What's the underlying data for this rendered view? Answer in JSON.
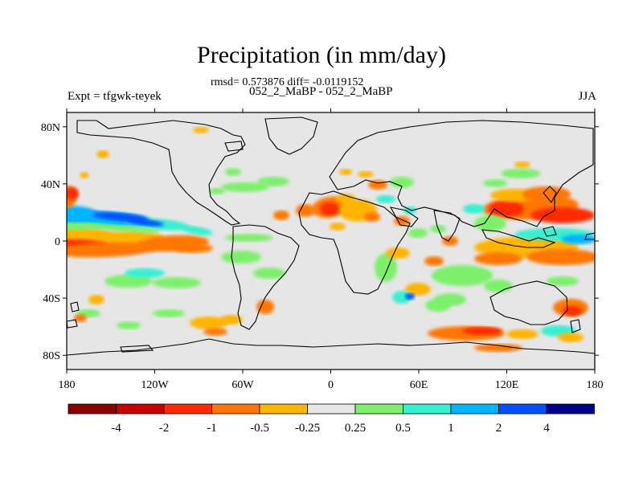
{
  "title": "Precipitation (in mm/day)",
  "stats": "rmsd= 0.573876 diff= -0.0119152",
  "comparison": "052_2_MaBP - 052_2_MaBP",
  "experiment": "Expt = tfgwk-teyek",
  "season": "JJA",
  "lat_ticks": [
    {
      "label": "80N",
      "lat": 80
    },
    {
      "label": "40N",
      "lat": 40
    },
    {
      "label": "0",
      "lat": 0
    },
    {
      "label": "40S",
      "lat": -40
    },
    {
      "label": "80S",
      "lat": -80
    }
  ],
  "lon_ticks": [
    {
      "label": "180",
      "lon": -180
    },
    {
      "label": "120W",
      "lon": -120
    },
    {
      "label": "60W",
      "lon": -60
    },
    {
      "label": "0",
      "lon": 0
    },
    {
      "label": "60E",
      "lon": 60
    },
    {
      "label": "120E",
      "lon": 120
    },
    {
      "label": "180",
      "lon": 180
    }
  ],
  "colorbar": {
    "colors": [
      "#8b0000",
      "#c80000",
      "#ff2a00",
      "#ff7700",
      "#ffb400",
      "#e6e6e6",
      "#7cf06a",
      "#36f0d2",
      "#00b4ff",
      "#0050ff",
      "#00008c"
    ],
    "labels": [
      "-4",
      "-2",
      "-1",
      "-0.5",
      "-0.25",
      "0.25",
      "0.5",
      "1",
      "2",
      "4"
    ]
  },
  "ocean_color": "#e6e6e6",
  "coast_color": "#000000"
}
